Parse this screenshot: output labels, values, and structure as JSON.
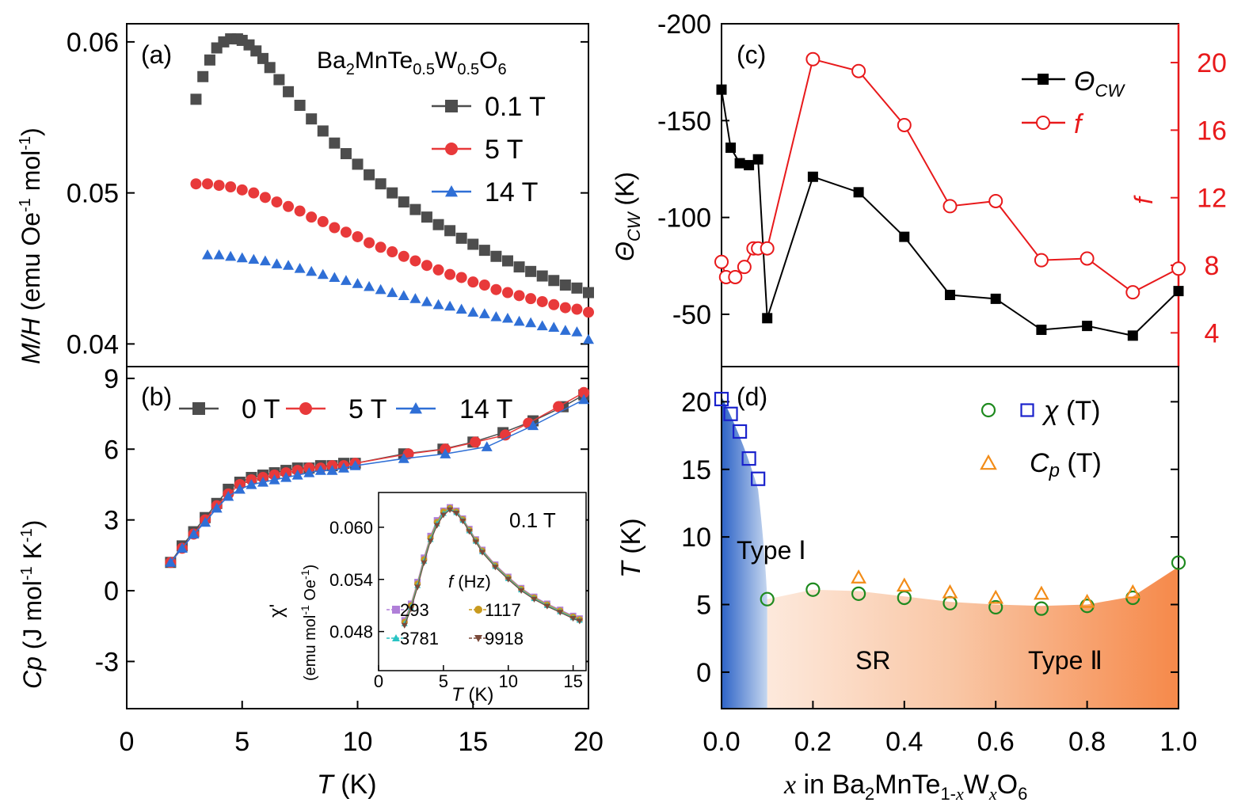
{
  "chart_data": [
    {
      "panel_label": "(a)",
      "type": "scatter",
      "annotation": {
        "base": "Ba",
        "parts": [
          [
            "2",
            ""
          ],
          [
            "Mn",
            ""
          ],
          [
            "Te",
            ""
          ],
          [
            "0.5",
            ""
          ],
          [
            "W",
            ""
          ],
          [
            "0.5",
            ""
          ],
          [
            "O",
            ""
          ],
          [
            "6",
            ""
          ]
        ]
      },
      "annotation_text": "Ba2MnTe0.5W0.5O6",
      "ylabel_italic": "M/H",
      "ylabel_rest": " (emu Oe",
      "ylabel_exp1": "-1",
      "ylabel_mid": " mol",
      "ylabel_exp2": "-1",
      "ylabel_end": ")",
      "ylim": [
        0.0385,
        0.0612
      ],
      "yticks": [
        0.04,
        0.05,
        0.06
      ],
      "ytick_labels": [
        "0.04",
        "0.05",
        "0.06"
      ],
      "xlim": [
        0,
        20
      ],
      "series": [
        {
          "name": "0.1 T",
          "color": "#4d4d4d",
          "marker": "square",
          "x": [
            3.0,
            3.3,
            3.6,
            3.9,
            4.2,
            4.5,
            4.8,
            5.0,
            5.3,
            5.6,
            5.9,
            6.2,
            6.6,
            7.0,
            7.5,
            8.0,
            8.5,
            9.0,
            9.5,
            10.0,
            10.5,
            11.0,
            11.5,
            12.0,
            12.5,
            13.0,
            13.5,
            14.0,
            14.5,
            15.0,
            15.5,
            16.0,
            16.5,
            17.0,
            17.5,
            18.0,
            18.5,
            19.0,
            19.5,
            20.0
          ],
          "y": [
            0.0562,
            0.0577,
            0.0588,
            0.0596,
            0.06,
            0.0602,
            0.0602,
            0.0601,
            0.0598,
            0.0594,
            0.0589,
            0.0583,
            0.0575,
            0.0567,
            0.0558,
            0.0549,
            0.0541,
            0.0533,
            0.0526,
            0.0519,
            0.0512,
            0.0506,
            0.05,
            0.0494,
            0.0489,
            0.0484,
            0.0479,
            0.0475,
            0.047,
            0.0466,
            0.0462,
            0.0458,
            0.0455,
            0.0451,
            0.0448,
            0.0445,
            0.0442,
            0.0439,
            0.0437,
            0.0434
          ]
        },
        {
          "name": "5 T",
          "color": "#e8393a",
          "marker": "circle",
          "x": [
            3.0,
            3.5,
            4.0,
            4.5,
            5.0,
            5.5,
            6.0,
            6.5,
            7.0,
            7.5,
            8.0,
            8.5,
            9.0,
            9.5,
            10.0,
            10.5,
            11.0,
            11.5,
            12.0,
            12.5,
            13.0,
            13.5,
            14.0,
            14.5,
            15.0,
            15.5,
            16.0,
            16.5,
            17.0,
            17.5,
            18.0,
            18.5,
            19.0,
            19.5,
            20.0
          ],
          "y": [
            0.0506,
            0.0506,
            0.0505,
            0.0504,
            0.0502,
            0.05,
            0.0497,
            0.0494,
            0.0491,
            0.0488,
            0.0484,
            0.0481,
            0.0477,
            0.0474,
            0.0471,
            0.0467,
            0.0464,
            0.0461,
            0.0458,
            0.0455,
            0.0452,
            0.0449,
            0.0446,
            0.0444,
            0.0441,
            0.0439,
            0.0436,
            0.0434,
            0.0432,
            0.043,
            0.0428,
            0.0426,
            0.0424,
            0.0423,
            0.0421
          ]
        },
        {
          "name": "14 T",
          "color": "#2f6fd6",
          "marker": "triangle",
          "x": [
            3.5,
            4.0,
            4.5,
            5.0,
            5.5,
            6.0,
            6.5,
            7.0,
            7.5,
            8.0,
            8.5,
            9.0,
            9.5,
            10.0,
            10.5,
            11.0,
            11.5,
            12.0,
            12.5,
            13.0,
            13.5,
            14.0,
            14.5,
            15.0,
            15.5,
            16.0,
            16.5,
            17.0,
            17.5,
            18.0,
            18.5,
            19.0,
            19.5,
            20.0
          ],
          "y": [
            0.0459,
            0.0459,
            0.0458,
            0.0457,
            0.0456,
            0.0455,
            0.0453,
            0.0452,
            0.045,
            0.0448,
            0.0446,
            0.0444,
            0.0442,
            0.044,
            0.0438,
            0.0436,
            0.0434,
            0.0432,
            0.043,
            0.0428,
            0.0426,
            0.0425,
            0.0423,
            0.0421,
            0.042,
            0.0418,
            0.0417,
            0.0415,
            0.0414,
            0.0412,
            0.0411,
            0.0409,
            0.0408,
            0.0403
          ]
        }
      ]
    },
    {
      "panel_label": "(b)",
      "type": "scatter",
      "ylabel_italic": "Cp",
      "ylabel_rest": " (J mol",
      "ylabel_exp1": "-1",
      "ylabel_mid": " K",
      "ylabel_exp2": "-1",
      "ylabel_end": ")",
      "ylim": [
        -5,
        9.5
      ],
      "yticks": [
        -3,
        0,
        3,
        6,
        9
      ],
      "ytick_labels": [
        "-3",
        "0",
        "3",
        "6",
        "9"
      ],
      "xlim": [
        0,
        20
      ],
      "xticks": [
        0,
        5,
        10,
        15,
        20
      ],
      "xtick_labels": [
        "0",
        "5",
        "10",
        "15",
        "20"
      ],
      "xlabel_italic": "T",
      "xlabel_rest": " (K)",
      "series": [
        {
          "name": "0 T",
          "color": "#4d4d4d",
          "marker": "square",
          "x": [
            1.9,
            2.4,
            2.9,
            3.4,
            3.9,
            4.4,
            4.9,
            5.4,
            5.9,
            6.4,
            6.9,
            7.4,
            7.9,
            8.4,
            8.9,
            9.4,
            9.9,
            12.0,
            13.7,
            15.0,
            16.3,
            17.6,
            18.9,
            19.8
          ],
          "y": [
            1.2,
            1.9,
            2.5,
            3.1,
            3.7,
            4.3,
            4.6,
            4.8,
            4.9,
            5.0,
            5.1,
            5.2,
            5.2,
            5.3,
            5.3,
            5.4,
            5.4,
            5.8,
            6.0,
            6.3,
            6.7,
            7.2,
            7.8,
            8.3
          ]
        },
        {
          "name": "5 T",
          "color": "#e8393a",
          "marker": "circle",
          "x": [
            1.9,
            2.4,
            2.9,
            3.4,
            3.9,
            4.4,
            4.9,
            5.4,
            5.9,
            6.4,
            6.9,
            7.4,
            7.9,
            8.4,
            8.9,
            9.4,
            9.9,
            12.2,
            13.8,
            15.1,
            16.4,
            17.4,
            18.7,
            19.8
          ],
          "y": [
            1.2,
            1.8,
            2.4,
            3.0,
            3.6,
            4.1,
            4.5,
            4.7,
            4.8,
            4.9,
            5.0,
            5.1,
            5.2,
            5.2,
            5.3,
            5.3,
            5.4,
            5.8,
            6.0,
            6.3,
            6.6,
            7.1,
            7.8,
            8.4
          ]
        },
        {
          "name": "14 T",
          "color": "#2f6fd6",
          "marker": "triangle",
          "x": [
            1.9,
            2.4,
            2.9,
            3.4,
            3.9,
            4.4,
            4.9,
            5.4,
            5.9,
            6.4,
            6.9,
            7.4,
            7.9,
            8.4,
            8.9,
            9.4,
            9.9,
            12.0,
            13.8,
            15.6,
            17.6,
            19.8
          ],
          "y": [
            1.2,
            1.8,
            2.4,
            2.9,
            3.5,
            4.0,
            4.3,
            4.5,
            4.6,
            4.7,
            4.8,
            4.9,
            5.0,
            5.1,
            5.1,
            5.2,
            5.3,
            5.6,
            5.8,
            6.1,
            7.0,
            8.1
          ]
        }
      ],
      "inset": {
        "label": "0.1 T",
        "ylabel": "χ'",
        "ylabel_units": "(emu mol",
        "ylabel_exp1": "-1",
        "ylabel_mid": " Oe",
        "ylabel_exp2": "-1",
        "ylabel_end": ")",
        "xlabel_italic": "T",
        "xlabel_rest": " (K)",
        "legend_title_italic": "f",
        "legend_title_rest": " (Hz)",
        "xlim": [
          0,
          16
        ],
        "xticks": [
          0,
          5,
          10,
          15
        ],
        "xtick_labels": [
          "0",
          "5",
          "10",
          "15"
        ],
        "ylim": [
          0.0435,
          0.064
        ],
        "yticks": [
          0.048,
          0.054,
          0.06
        ],
        "ytick_labels": [
          "0.048",
          "0.054",
          "0.060"
        ],
        "series": [
          {
            "name": "293",
            "color": "#b07fd8",
            "marker": "square",
            "x": [
              2.0,
              2.5,
              3.0,
              3.5,
              4.0,
              4.5,
              5.0,
              5.5,
              6.0,
              6.5,
              7.0,
              7.5,
              8.0,
              9.0,
              10.0,
              11.0,
              12.0,
              13.0,
              14.0,
              15.0,
              15.5
            ],
            "y": [
              0.0493,
              0.0512,
              0.0537,
              0.0565,
              0.059,
              0.0608,
              0.0619,
              0.0623,
              0.0619,
              0.061,
              0.0598,
              0.0586,
              0.0574,
              0.0557,
              0.0543,
              0.053,
              0.052,
              0.0512,
              0.0505,
              0.0498,
              0.0495
            ]
          },
          {
            "name": "1117",
            "color": "#c89a1e",
            "marker": "circle",
            "x": [
              2.0,
              2.5,
              3.0,
              3.5,
              4.0,
              4.5,
              5.0,
              5.5,
              6.0,
              6.5,
              7.0,
              7.5,
              8.0,
              9.0,
              10.0,
              11.0,
              12.0,
              13.0,
              14.0,
              15.0,
              15.5
            ],
            "y": [
              0.0491,
              0.051,
              0.0535,
              0.0563,
              0.0588,
              0.0606,
              0.0618,
              0.0622,
              0.0618,
              0.0609,
              0.0597,
              0.0585,
              0.0573,
              0.0556,
              0.0542,
              0.0529,
              0.0519,
              0.0511,
              0.0504,
              0.0497,
              0.0494
            ]
          },
          {
            "name": "3781",
            "color": "#2ac4c4",
            "marker": "triangle",
            "x": [
              2.0,
              2.5,
              3.0,
              3.5,
              4.0,
              4.5,
              5.0,
              5.5,
              6.0,
              6.5,
              7.0,
              7.5,
              8.0,
              9.0,
              10.0,
              11.0,
              12.0,
              13.0,
              14.0,
              15.0,
              15.5
            ],
            "y": [
              0.0489,
              0.0508,
              0.0533,
              0.0561,
              0.0586,
              0.0604,
              0.0616,
              0.0621,
              0.0617,
              0.0608,
              0.0596,
              0.0584,
              0.0572,
              0.0555,
              0.0541,
              0.0528,
              0.0518,
              0.051,
              0.0503,
              0.0496,
              0.0493
            ]
          },
          {
            "name": "9918",
            "color": "#7a4a3a",
            "marker": "triangle-down",
            "x": [
              2.0,
              2.5,
              3.0,
              3.5,
              4.0,
              4.5,
              5.0,
              5.5,
              6.0,
              6.5,
              7.0,
              7.5,
              8.0,
              9.0,
              10.0,
              11.0,
              12.0,
              13.0,
              14.0,
              15.0,
              15.5
            ],
            "y": [
              0.0487,
              0.0506,
              0.0531,
              0.0559,
              0.0584,
              0.0602,
              0.0614,
              0.062,
              0.0616,
              0.0607,
              0.0595,
              0.0583,
              0.0571,
              0.0554,
              0.054,
              0.0527,
              0.0517,
              0.0509,
              0.0502,
              0.0495,
              0.0492
            ]
          }
        ]
      }
    },
    {
      "panel_label": "(c)",
      "type": "line",
      "xlim": [
        0,
        1.0
      ],
      "ylim_left": [
        -200,
        -23
      ],
      "ylim_left_note": "axis inverted: -200 at top",
      "yticks_left": [
        -200,
        -150,
        -100,
        -50
      ],
      "ytick_labels_left": [
        "-200",
        "-150",
        "-100",
        "-50"
      ],
      "ylabel_left_sym": "Θ",
      "ylabel_left_sub": "CW",
      "ylabel_left_rest": " (K)",
      "ylim_right": [
        2.0,
        22.3
      ],
      "yticks_right": [
        4,
        8,
        12,
        16,
        20
      ],
      "ytick_labels_right": [
        "4",
        "8",
        "12",
        "16",
        "20"
      ],
      "ylabel_right": "f",
      "right_axis_color": "#e8191b",
      "series": [
        {
          "name_sym": "Θ",
          "name_sub": "CW",
          "axis": "left",
          "color": "#000000",
          "marker": "square-filled",
          "x": [
            0.0,
            0.02,
            0.04,
            0.06,
            0.08,
            0.1,
            0.2,
            0.3,
            0.4,
            0.5,
            0.6,
            0.7,
            0.8,
            0.9,
            1.0
          ],
          "y": [
            -166,
            -136,
            -128,
            -127,
            -130,
            -48,
            -121,
            -113,
            -90,
            -60,
            -58,
            -42,
            -44,
            -39,
            -62
          ]
        },
        {
          "name": "f",
          "axis": "right",
          "color": "#e8191b",
          "marker": "circle-open",
          "x": [
            0.0,
            0.01,
            0.03,
            0.05,
            0.07,
            0.08,
            0.1,
            0.2,
            0.3,
            0.4,
            0.5,
            0.6,
            0.7,
            0.8,
            0.9,
            1.0
          ],
          "y": [
            8.2,
            7.3,
            7.3,
            7.9,
            9.0,
            9.0,
            9.0,
            20.2,
            19.5,
            16.3,
            11.5,
            11.8,
            8.3,
            8.4,
            6.4,
            7.8
          ]
        }
      ]
    },
    {
      "panel_label": "(d)",
      "type": "scatter",
      "xlim": [
        0,
        1.0
      ],
      "xticks": [
        0.0,
        0.2,
        0.4,
        0.6,
        0.8,
        1.0
      ],
      "xtick_labels": [
        "0.0",
        "0.2",
        "0.4",
        "0.6",
        "0.8",
        "1.0"
      ],
      "ylim": [
        -2.7,
        22.6
      ],
      "yticks": [
        0,
        5,
        10,
        15,
        20
      ],
      "ytick_labels": [
        "0",
        "5",
        "10",
        "15",
        "20"
      ],
      "ylabel_italic": "T",
      "ylabel_rest": " (K)",
      "xlabel_pre": "x",
      "xlabel_mid": " in Ba",
      "xlabel_parts": "Ba2MnTe1-xWxO6",
      "regions": {
        "type1": "Type Ⅰ",
        "sr": "SR",
        "type2": "Type Ⅱ"
      },
      "colors": {
        "type1_dark": "#2d63c7",
        "type1_light": "#c5d6ef",
        "sr_light": "#fde4d3",
        "type2": "#f6894a"
      },
      "legend": [
        {
          "label": "χ (T)",
          "markers": [
            "circle-open-green",
            "square-open-blue"
          ]
        },
        {
          "label": "Cp (T)",
          "markers": [
            "triangle-open-orange"
          ]
        }
      ],
      "series": [
        {
          "name": "χ (T) square",
          "color": "#1a22cc",
          "marker": "square-open",
          "x": [
            0.0,
            0.02,
            0.04,
            0.06,
            0.08
          ],
          "y": [
            20.2,
            19.1,
            17.8,
            15.8,
            14.3
          ]
        },
        {
          "name": "χ (T) circle",
          "color": "#1e8a1e",
          "marker": "circle-open",
          "x": [
            0.1,
            0.2,
            0.3,
            0.4,
            0.5,
            0.6,
            0.7,
            0.8,
            0.9,
            1.0
          ],
          "y": [
            5.4,
            6.1,
            5.8,
            5.5,
            5.1,
            4.8,
            4.7,
            4.9,
            5.5,
            8.1
          ]
        },
        {
          "name": "Cp (T)",
          "color": "#f28c18",
          "marker": "triangle-open",
          "x": [
            0.3,
            0.4,
            0.5,
            0.6,
            0.7,
            0.8,
            0.9
          ],
          "y": [
            7.0,
            6.4,
            5.9,
            5.5,
            5.8,
            5.2,
            5.9
          ]
        }
      ]
    }
  ]
}
